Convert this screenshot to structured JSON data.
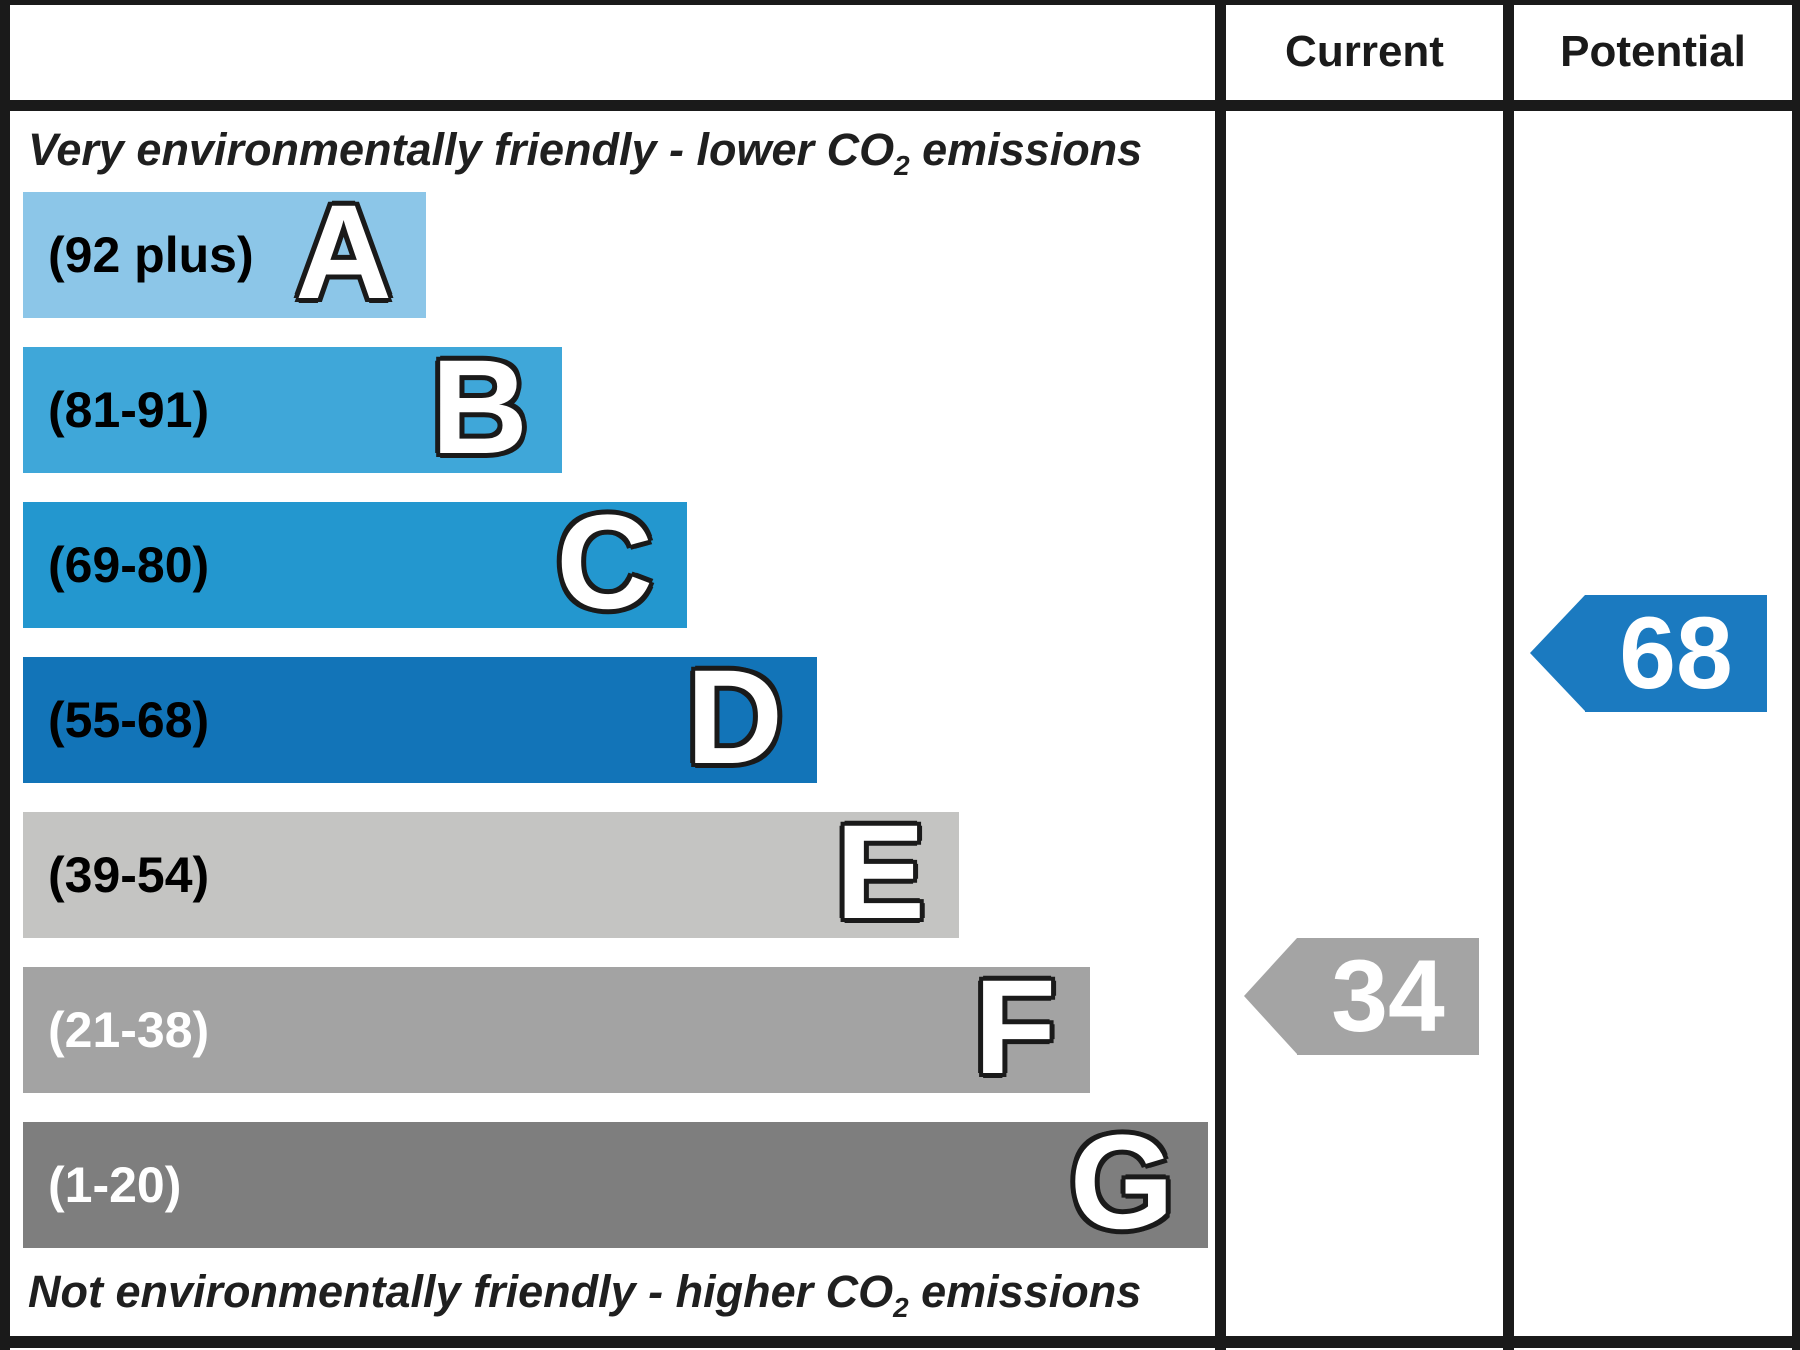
{
  "columns": [
    "Current",
    "Potential"
  ],
  "notes": {
    "top": {
      "pre": "Very environmentally friendly - lower CO",
      "sub": "2",
      "post": " emissions"
    },
    "bottom": {
      "pre": "Not environmentally friendly - higher CO",
      "sub": "2",
      "post": " emissions"
    }
  },
  "chart_data": {
    "type": "bar",
    "categories": [
      "A",
      "B",
      "C",
      "D",
      "E",
      "F",
      "G"
    ],
    "bands": [
      {
        "letter": "A",
        "range": "(92 plus)",
        "color": "#8CC6E8",
        "label_color": "#000000",
        "width_pct": 34
      },
      {
        "letter": "B",
        "range": "(81-91)",
        "color": "#3FA7D9",
        "label_color": "#000000",
        "width_pct": 45.5
      },
      {
        "letter": "C",
        "range": "(69-80)",
        "color": "#2397CF",
        "label_color": "#000000",
        "width_pct": 56
      },
      {
        "letter": "D",
        "range": "(55-68)",
        "color": "#1274B8",
        "label_color": "#000000",
        "width_pct": 67
      },
      {
        "letter": "E",
        "range": "(39-54)",
        "color": "#C4C4C2",
        "label_color": "#000000",
        "width_pct": 79
      },
      {
        "letter": "F",
        "range": "(21-38)",
        "color": "#A3A3A3",
        "label_color": "#FFFFFF",
        "width_pct": 90
      },
      {
        "letter": "G",
        "range": "(1-20)",
        "color": "#7E7E7E",
        "label_color": "#FFFFFF",
        "width_pct": 100
      }
    ],
    "current": {
      "value": "34",
      "band": "F",
      "color": "#A4A4A4"
    },
    "potential": {
      "value": "68",
      "band": "D",
      "color": "#1B7AC0"
    },
    "columns": [
      "Current",
      "Potential"
    ],
    "annotation_top": "Very environmentally friendly - lower CO2 emissions",
    "annotation_bottom": "Not environmentally friendly - higher CO2 emissions"
  }
}
